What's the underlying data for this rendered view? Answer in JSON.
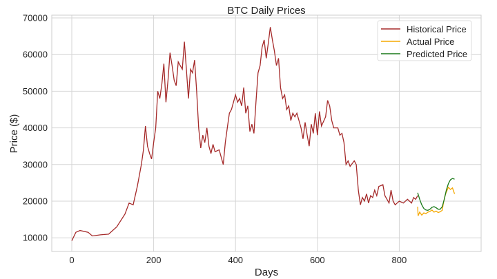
{
  "chart_data": {
    "type": "line",
    "title": "BTC Daily Prices",
    "xlabel": "Days",
    "ylabel": "Price ($)",
    "xlim": [
      -50,
      985
    ],
    "ylim": [
      6600,
      71000
    ],
    "xticks": [
      0,
      200,
      400,
      600,
      800
    ],
    "yticks": [
      10000,
      20000,
      30000,
      40000,
      50000,
      60000,
      70000
    ],
    "grid": true,
    "legend_position": "top-right",
    "series": [
      {
        "name": "Historical Price",
        "color": "#a52a2a",
        "x": [
          0,
          10,
          20,
          40,
          50,
          70,
          90,
          110,
          130,
          140,
          150,
          160,
          170,
          175,
          180,
          185,
          190,
          195,
          200,
          205,
          210,
          215,
          220,
          225,
          230,
          235,
          240,
          245,
          250,
          255,
          260,
          265,
          270,
          275,
          280,
          285,
          290,
          295,
          300,
          305,
          310,
          315,
          320,
          325,
          330,
          335,
          340,
          345,
          350,
          360,
          370,
          375,
          380,
          385,
          390,
          395,
          400,
          405,
          410,
          415,
          420,
          425,
          430,
          435,
          440,
          445,
          450,
          455,
          460,
          465,
          470,
          475,
          480,
          485,
          490,
          495,
          500,
          505,
          510,
          515,
          520,
          525,
          530,
          535,
          540,
          545,
          550,
          560,
          565,
          570,
          575,
          580,
          585,
          590,
          595,
          600,
          605,
          610,
          620,
          625,
          630,
          635,
          640,
          650,
          655,
          660,
          665,
          670,
          675,
          680,
          690,
          695,
          700,
          705,
          710,
          715,
          720,
          725,
          730,
          735,
          740,
          745,
          750,
          760,
          765,
          770,
          775,
          780,
          785,
          790,
          795,
          800,
          810,
          820,
          830,
          835,
          840,
          845
        ],
        "y": [
          9200,
          11500,
          12000,
          11500,
          10500,
          10800,
          11000,
          13000,
          16500,
          19500,
          19000,
          24000,
          30000,
          34000,
          40500,
          35000,
          33000,
          31500,
          36000,
          40000,
          50000,
          48000,
          52000,
          57500,
          47000,
          53000,
          60500,
          57000,
          53000,
          51500,
          58000,
          57000,
          56000,
          63500,
          56000,
          48000,
          56000,
          55000,
          58500,
          50000,
          40000,
          34500,
          38000,
          36000,
          40000,
          35000,
          33000,
          35500,
          33500,
          34000,
          30000,
          36000,
          40000,
          44000,
          45000,
          47000,
          49000,
          47000,
          48000,
          46000,
          51000,
          44000,
          46000,
          39000,
          41000,
          38500,
          47000,
          55000,
          57000,
          62000,
          64000,
          59000,
          63000,
          67500,
          64000,
          61000,
          57000,
          59000,
          51000,
          48000,
          49000,
          45000,
          46000,
          42000,
          44000,
          43000,
          44000,
          40000,
          37000,
          41500,
          38000,
          35000,
          41000,
          38500,
          44000,
          38000,
          44500,
          40500,
          43000,
          47500,
          46000,
          42000,
          40000,
          40000,
          38000,
          38500,
          36000,
          30000,
          31000,
          29500,
          31000,
          30000,
          23000,
          19000,
          21000,
          20000,
          22000,
          19500,
          21500,
          21000,
          23000,
          21500,
          24000,
          24500,
          21500,
          20500,
          19500,
          23000,
          20000,
          19000,
          19500,
          20000,
          19500,
          20500,
          19500,
          21000,
          20500,
          21500
        ]
      },
      {
        "name": "Actual Price",
        "color": "#f5a800",
        "x": [
          845,
          846,
          850,
          855,
          860,
          865,
          870,
          875,
          880,
          885,
          890,
          895,
          900,
          905,
          908,
          912,
          915,
          920,
          925,
          930,
          935
        ],
        "y": [
          18500,
          16000,
          17000,
          16200,
          16800,
          16600,
          17000,
          17200,
          17600,
          17000,
          17300,
          16900,
          17100,
          17500,
          19500,
          21500,
          22500,
          23800,
          23200,
          23600,
          22000
        ]
      },
      {
        "name": "Predicted Price",
        "color": "#1a7a1a",
        "x": [
          845,
          850,
          855,
          860,
          865,
          870,
          875,
          880,
          885,
          890,
          895,
          900,
          905,
          910,
          915,
          920,
          925,
          930,
          935
        ],
        "y": [
          22300,
          20500,
          19000,
          18000,
          17600,
          17500,
          17800,
          18300,
          18500,
          18200,
          17800,
          17800,
          18500,
          20500,
          23000,
          24800,
          25800,
          26200,
          26000
        ]
      }
    ]
  }
}
